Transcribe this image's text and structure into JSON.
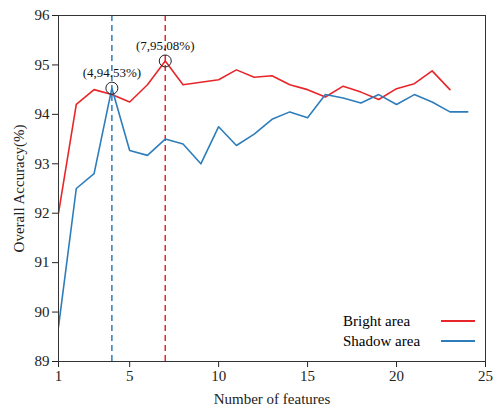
{
  "chart_data": {
    "type": "line",
    "x_label": "Number of features",
    "y_label": "Overall Accuracy(%)",
    "x": [
      1,
      2,
      3,
      4,
      5,
      6,
      7,
      8,
      9,
      10,
      11,
      12,
      13,
      14,
      15,
      16,
      17,
      18,
      19,
      20,
      21,
      22,
      23,
      24
    ],
    "series": [
      {
        "name": "Bright area",
        "color": "#e8262a",
        "values": [
          92.0,
          94.2,
          94.5,
          94.4,
          94.25,
          94.6,
          95.08,
          94.6,
          94.65,
          94.7,
          94.9,
          94.75,
          94.78,
          94.6,
          94.5,
          94.35,
          94.57,
          94.45,
          94.3,
          94.52,
          94.62,
          94.88,
          94.5,
          null
        ]
      },
      {
        "name": "Shadow area",
        "color": "#2e7dbb",
        "values": [
          89.7,
          92.5,
          92.8,
          94.53,
          93.27,
          93.17,
          93.5,
          93.4,
          93.0,
          93.75,
          93.37,
          93.6,
          93.9,
          94.05,
          93.93,
          94.4,
          94.33,
          94.23,
          94.4,
          94.2,
          94.4,
          94.25,
          94.05,
          94.05
        ]
      }
    ],
    "annotations": [
      {
        "text": "(4,94.53%)",
        "x": 4,
        "y": 94.53,
        "color": "#2e7dbb"
      },
      {
        "text": "(7,95.08%)",
        "x": 7,
        "y": 95.08,
        "color": "#e8262a"
      }
    ],
    "xlim": [
      1,
      25
    ],
    "xticks": [
      1,
      5,
      10,
      15,
      20,
      25
    ],
    "ylim": [
      89,
      96
    ],
    "yticks": [
      89,
      90,
      91,
      92,
      93,
      94,
      95,
      96
    ],
    "legend": "lower right",
    "grid": false
  }
}
